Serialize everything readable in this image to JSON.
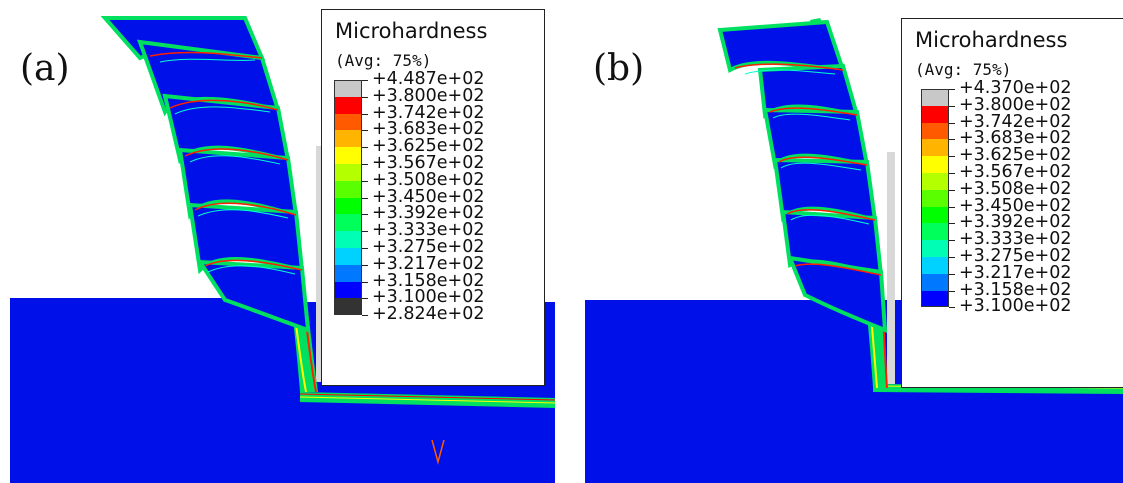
{
  "panels": [
    {
      "label": "(a)",
      "legend": {
        "title": "Microhardness",
        "subtitle": "(Avg: 75%)",
        "values": [
          "+4.487e+02",
          "+3.800e+02",
          "+3.742e+02",
          "+3.683e+02",
          "+3.625e+02",
          "+3.567e+02",
          "+3.508e+02",
          "+3.450e+02",
          "+3.392e+02",
          "+3.333e+02",
          "+3.275e+02",
          "+3.217e+02",
          "+3.158e+02",
          "+3.100e+02",
          "+2.824e+02"
        ],
        "colors": [
          "#c8c8c8",
          "#ff0000",
          "#ff5a00",
          "#ffb400",
          "#ffff00",
          "#b4ff00",
          "#5aff00",
          "#00ff00",
          "#00ff5a",
          "#00ffb4",
          "#00d2ff",
          "#0078ff",
          "#0000ff",
          "#333333"
        ]
      }
    },
    {
      "label": "(b)",
      "legend": {
        "title": "Microhardness",
        "subtitle": "(Avg: 75%)",
        "values": [
          "+4.370e+02",
          "+3.800e+02",
          "+3.742e+02",
          "+3.683e+02",
          "+3.625e+02",
          "+3.567e+02",
          "+3.508e+02",
          "+3.450e+02",
          "+3.392e+02",
          "+3.333e+02",
          "+3.275e+02",
          "+3.217e+02",
          "+3.158e+02",
          "+3.100e+02"
        ],
        "colors": [
          "#c8c8c8",
          "#ff0000",
          "#ff5a00",
          "#ffb400",
          "#ffff00",
          "#b4ff00",
          "#5aff00",
          "#00ff00",
          "#00ff5a",
          "#00ffb4",
          "#00d2ff",
          "#0078ff",
          "#0000ff"
        ]
      }
    }
  ]
}
